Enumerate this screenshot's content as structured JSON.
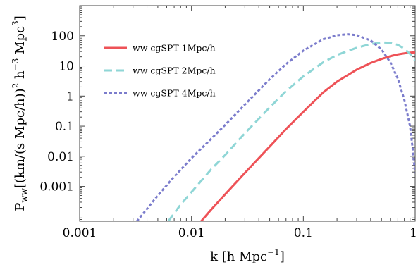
{
  "chart_data": {
    "type": "line",
    "title": "",
    "xlabel": {
      "main": "k [h Mpc",
      "sup": "−1",
      "end": "]"
    },
    "ylabel": {
      "p": "P",
      "sub": "ww",
      "mid1": "[(km/(s Mpc/h))",
      "sup1": "2",
      "mid2": " h",
      "sup2": "−3",
      "mid3": " Mpc",
      "sup3": "3",
      "end": "]"
    },
    "xscale": "log",
    "yscale": "log",
    "xlim": [
      0.001,
      1
    ],
    "ylim": [
      7e-05,
      1000
    ],
    "xticks": [
      {
        "value": 0.001,
        "label": "0.001"
      },
      {
        "value": 0.01,
        "label": "0.01"
      },
      {
        "value": 0.1,
        "label": "0.1"
      },
      {
        "value": 1,
        "label": "1"
      }
    ],
    "yticks": [
      {
        "value": 0.001,
        "label": "0.001"
      },
      {
        "value": 0.01,
        "label": "0.01"
      },
      {
        "value": 0.1,
        "label": "0.1"
      },
      {
        "value": 1,
        "label": "1"
      },
      {
        "value": 10,
        "label": "10"
      },
      {
        "value": 100,
        "label": "100"
      }
    ],
    "grid": false,
    "legend_position": "top-left",
    "series": [
      {
        "name": "ww cgSPT 1Mpc/h",
        "color": "#ee5257",
        "style": "solid",
        "points": [
          [
            0.0122,
            7e-05
          ],
          [
            0.015,
            0.00017
          ],
          [
            0.02,
            0.00055
          ],
          [
            0.03,
            0.0028
          ],
          [
            0.05,
            0.021
          ],
          [
            0.07,
            0.08
          ],
          [
            0.1,
            0.3
          ],
          [
            0.15,
            1.3
          ],
          [
            0.2,
            3.0
          ],
          [
            0.3,
            7.5
          ],
          [
            0.4,
            12.5
          ],
          [
            0.5,
            17.0
          ],
          [
            0.6,
            21.0
          ],
          [
            0.7,
            24.0
          ],
          [
            0.8,
            26.0
          ],
          [
            0.9,
            27.5
          ],
          [
            1.0,
            28.0
          ]
        ]
      },
      {
        "name": "ww cgSPT 2Mpc/h",
        "color": "#8fd6d6",
        "style": "dashed",
        "points": [
          [
            0.0062,
            7e-05
          ],
          [
            0.008,
            0.00025
          ],
          [
            0.01,
            0.00065
          ],
          [
            0.015,
            0.0037
          ],
          [
            0.02,
            0.011
          ],
          [
            0.03,
            0.058
          ],
          [
            0.05,
            0.42
          ],
          [
            0.07,
            1.45
          ],
          [
            0.1,
            4.5
          ],
          [
            0.15,
            13.0
          ],
          [
            0.2,
            23.0
          ],
          [
            0.3,
            40.0
          ],
          [
            0.4,
            53.0
          ],
          [
            0.5,
            60.0
          ],
          [
            0.6,
            59.0
          ],
          [
            0.7,
            50.0
          ],
          [
            0.8,
            37.0
          ],
          [
            0.9,
            25.0
          ],
          [
            1.0,
            15.0
          ]
        ]
      },
      {
        "name": "ww cgSPT 4Mpc/h",
        "color": "#7b7ccc",
        "style": "dotted",
        "points": [
          [
            0.00325,
            7e-05
          ],
          [
            0.004,
            0.00018
          ],
          [
            0.005,
            0.0005
          ],
          [
            0.007,
            0.0021
          ],
          [
            0.01,
            0.0087
          ],
          [
            0.015,
            0.038
          ],
          [
            0.02,
            0.11
          ],
          [
            0.03,
            0.52
          ],
          [
            0.05,
            3.6
          ],
          [
            0.07,
            11.5
          ],
          [
            0.1,
            32.0
          ],
          [
            0.15,
            76.0
          ],
          [
            0.2,
            104.0
          ],
          [
            0.25,
            112.0
          ],
          [
            0.3,
            105.0
          ],
          [
            0.4,
            70.0
          ],
          [
            0.5,
            35.0
          ],
          [
            0.6,
            13.0
          ],
          [
            0.7,
            3.8
          ],
          [
            0.8,
            0.75
          ],
          [
            0.9,
            0.1
          ],
          [
            0.95,
            0.018
          ],
          [
            1.0,
            0.0027
          ]
        ]
      }
    ]
  }
}
